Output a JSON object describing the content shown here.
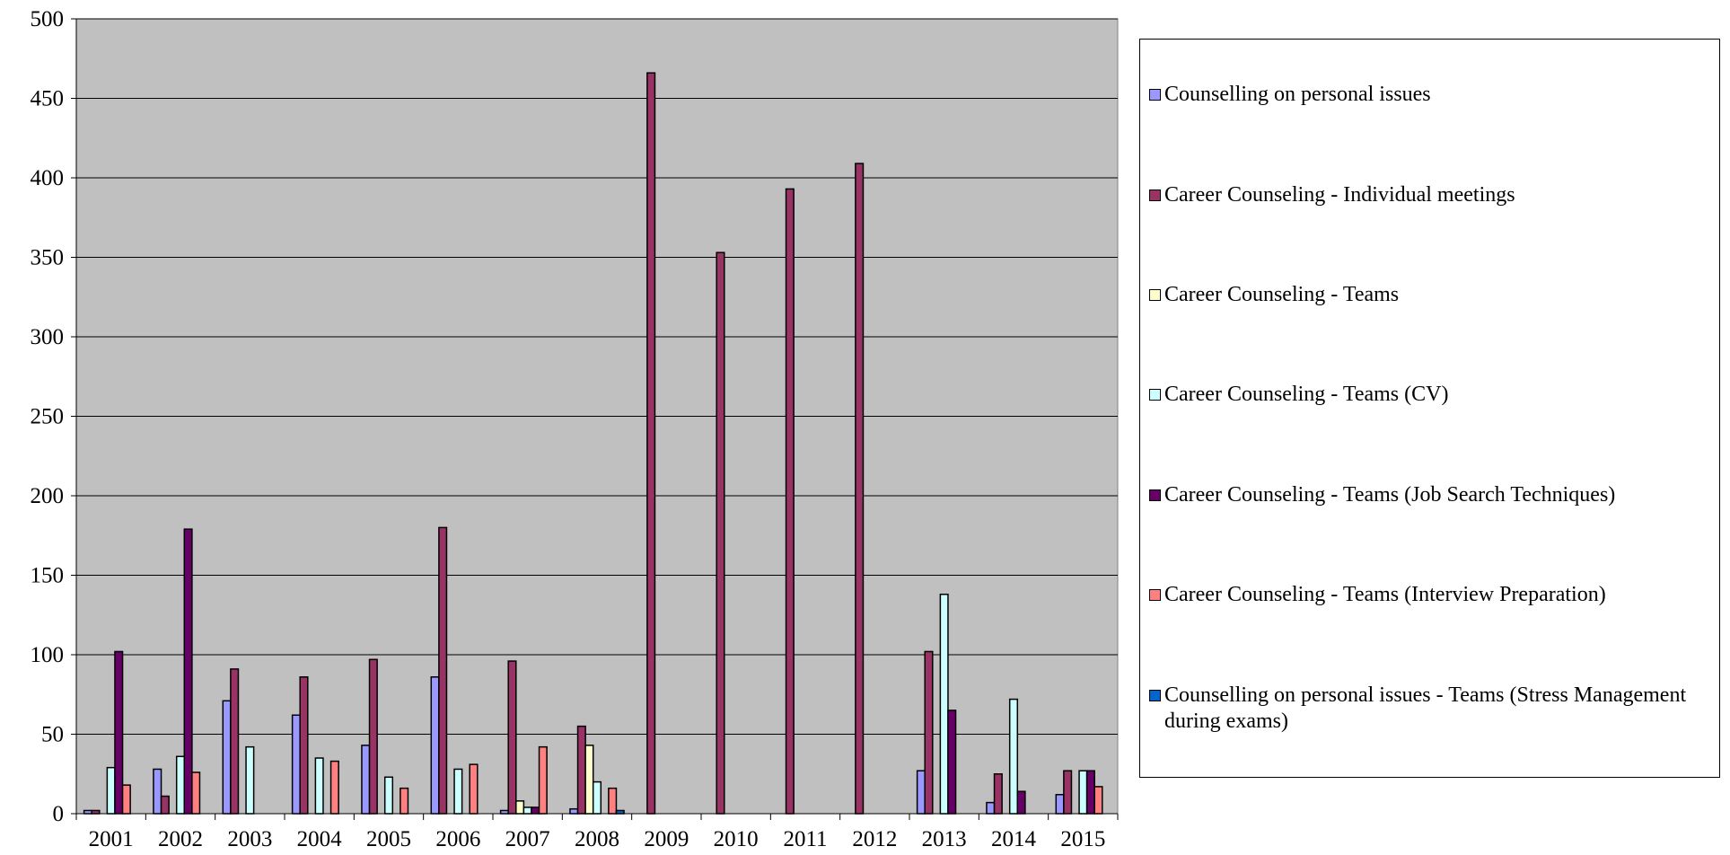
{
  "chart_data": {
    "type": "bar",
    "categories": [
      "2001",
      "2002",
      "2003",
      "2004",
      "2005",
      "2006",
      "2007",
      "2008",
      "2009",
      "2010",
      "2011",
      "2012",
      "2013",
      "2014",
      "2015"
    ],
    "series": [
      {
        "name": "Counselling on personal issues",
        "color": "#9999ff",
        "values": [
          2,
          28,
          71,
          62,
          43,
          86,
          2,
          3,
          0,
          0,
          0,
          0,
          27,
          7,
          12
        ]
      },
      {
        "name": "Career Counseling - Individual meetings",
        "color": "#993366",
        "values": [
          2,
          11,
          91,
          86,
          97,
          180,
          96,
          55,
          466,
          353,
          393,
          409,
          102,
          25,
          27
        ]
      },
      {
        "name": "Career Counseling - Teams",
        "color": "#ffffcc",
        "values": [
          0,
          0,
          0,
          0,
          0,
          0,
          8,
          43,
          0,
          0,
          0,
          0,
          0,
          0,
          0
        ]
      },
      {
        "name": "Career Counseling - Teams (CV)",
        "color": "#ccffff",
        "values": [
          29,
          36,
          42,
          35,
          23,
          28,
          4,
          20,
          0,
          0,
          0,
          0,
          138,
          72,
          27
        ]
      },
      {
        "name": "Career Counseling - Teams (Job Search Techniques)",
        "color": "#660066",
        "values": [
          102,
          179,
          0,
          0,
          0,
          0,
          4,
          0,
          0,
          0,
          0,
          0,
          65,
          14,
          27
        ]
      },
      {
        "name": "Career Counseling - Teams  (Interview Preparation)",
        "color": "#ff8080",
        "values": [
          18,
          26,
          0,
          33,
          16,
          31,
          42,
          16,
          0,
          0,
          0,
          0,
          0,
          0,
          17
        ]
      },
      {
        "name": "Counselling on personal issues - Teams (Stress Management during exams)",
        "color": "#0066cc",
        "values": [
          0,
          0,
          0,
          0,
          0,
          0,
          0,
          2,
          0,
          0,
          0,
          0,
          0,
          0,
          0
        ]
      }
    ],
    "ylim": [
      0,
      500
    ],
    "yticks": [
      0,
      50,
      100,
      150,
      200,
      250,
      300,
      350,
      400,
      450,
      500
    ],
    "grid": true,
    "background": "#c0c0c0",
    "legend": "right"
  }
}
